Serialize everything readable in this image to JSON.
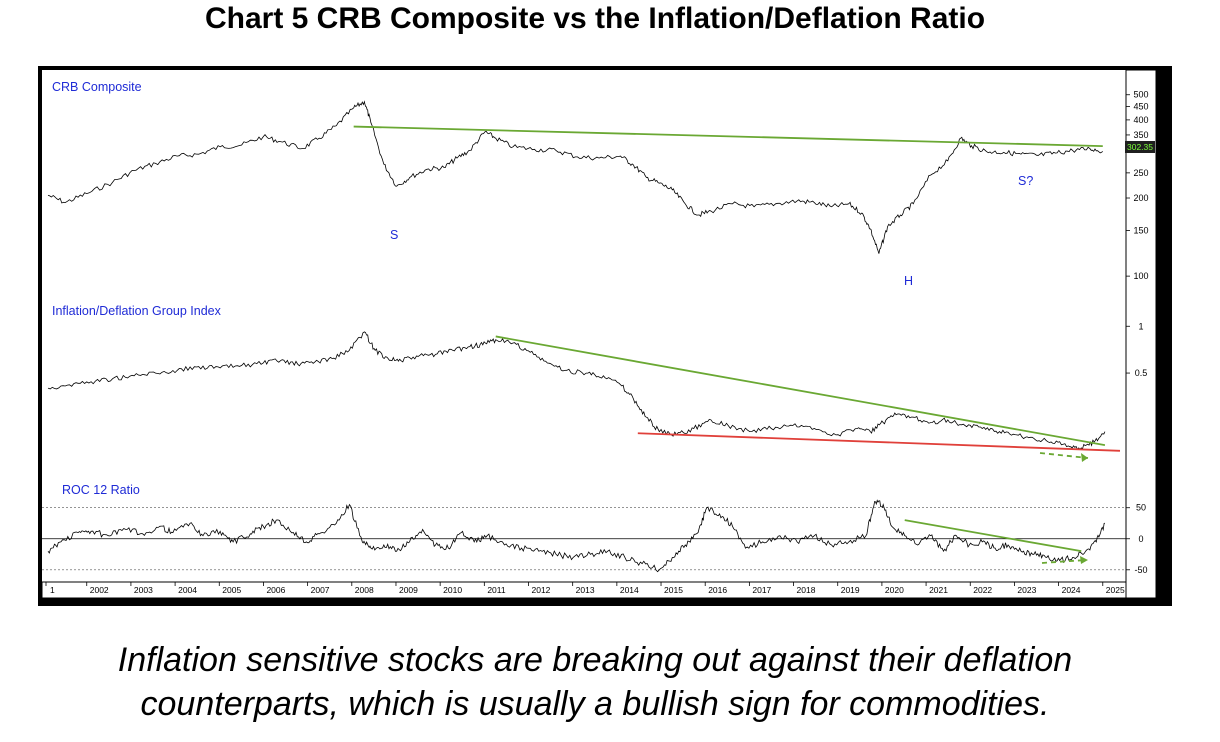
{
  "title": "Chart 5 CRB Composite vs the Inflation/Deflation Ratio",
  "caption_lines": [
    "Inflation sensitive stocks are breaking out against their deflation",
    "counterparts, which is usually a bullish sign for commodities."
  ],
  "chart_data": [
    {
      "type": "line",
      "panel": "top",
      "label": "CRB Composite",
      "scale": "log",
      "ylim": [
        90,
        550
      ],
      "yticks": [
        500,
        450,
        400,
        350,
        250,
        200,
        150,
        100
      ],
      "last_value_label": "302.35",
      "x_labels": [
        "1",
        "2002",
        "2003",
        "2004",
        "2005",
        "2006",
        "2007",
        "2008",
        "2009",
        "2010",
        "2011",
        "2012",
        "2013",
        "2014",
        "2015",
        "2016",
        "2017",
        "2018",
        "2019",
        "2020",
        "2021",
        "2022",
        "2023",
        "2024",
        "2025"
      ],
      "series": [
        {
          "x": [
            2001.0,
            2001.4,
            2001.9,
            2002.5,
            2003.0,
            2003.5,
            2004.0,
            2004.5,
            2005.0,
            2005.5,
            2006.0,
            2006.4,
            2006.9,
            2007.3,
            2007.7,
            2008.1,
            2008.35,
            2008.5,
            2008.8,
            2009.1,
            2009.4,
            2009.8,
            2010.2,
            2010.5,
            2010.8,
            2011.15,
            2011.4,
            2011.8,
            2012.3,
            2012.8,
            2013.3,
            2013.8,
            2014.3,
            2014.6,
            2014.9,
            2015.2,
            2015.5,
            2015.8,
            2016.1,
            2016.4,
            2016.9,
            2017.4,
            2017.9,
            2018.4,
            2018.8,
            2019.2,
            2019.6,
            2019.9,
            2020.1,
            2020.3,
            2020.5,
            2020.8,
            2021.1,
            2021.5,
            2021.9,
            2022.2,
            2022.45,
            2022.8,
            2023.2,
            2023.6,
            2024.0,
            2024.4,
            2024.8,
            2025.2,
            2025.5
          ],
          "values": [
            205,
            192,
            208,
            230,
            255,
            272,
            290,
            295,
            315,
            320,
            345,
            330,
            310,
            340,
            380,
            445,
            470,
            390,
            270,
            222,
            240,
            258,
            262,
            285,
            305,
            360,
            340,
            315,
            308,
            305,
            288,
            285,
            290,
            268,
            240,
            228,
            215,
            190,
            172,
            178,
            190,
            185,
            190,
            195,
            192,
            185,
            190,
            175,
            152,
            122,
            155,
            172,
            190,
            245,
            278,
            340,
            318,
            302,
            300,
            295,
            292,
            298,
            305,
            310,
            302.35
          ]
        }
      ],
      "trendlines": [
        {
          "color": "#6aa833",
          "x": [
            2008.1,
            2025.5
          ],
          "y": [
            377,
            317
          ]
        }
      ],
      "annotations": [
        "S",
        "H",
        "S?"
      ]
    },
    {
      "type": "line",
      "panel": "middle",
      "label": "Inflation/Deflation Group Index",
      "scale": "log",
      "ylim": [
        0.13,
        1.35
      ],
      "yticks": [
        1.0,
        0.5
      ],
      "series": [
        {
          "x": [
            2001.0,
            2001.5,
            2002.0,
            2002.5,
            2003.0,
            2003.5,
            2004.0,
            2004.5,
            2005.0,
            2005.5,
            2006.0,
            2006.4,
            2006.8,
            2007.2,
            2007.6,
            2008.0,
            2008.35,
            2008.6,
            2008.9,
            2009.2,
            2009.6,
            2010.0,
            2010.4,
            2010.8,
            2011.1,
            2011.4,
            2011.8,
            2012.2,
            2012.6,
            2013.0,
            2013.5,
            2013.9,
            2014.3,
            2014.6,
            2014.9,
            2015.2,
            2015.6,
            2016.0,
            2016.4,
            2016.8,
            2017.3,
            2017.8,
            2018.3,
            2018.8,
            2019.3,
            2019.8,
            2020.1,
            2020.4,
            2020.7,
            2021.1,
            2021.5,
            2021.9,
            2022.3,
            2022.7,
            2023.1,
            2023.5,
            2023.9,
            2024.3,
            2024.7,
            2025.0,
            2025.3,
            2025.55
          ],
          "values": [
            0.4,
            0.42,
            0.44,
            0.46,
            0.48,
            0.5,
            0.52,
            0.55,
            0.54,
            0.56,
            0.58,
            0.6,
            0.57,
            0.59,
            0.62,
            0.7,
            0.92,
            0.7,
            0.62,
            0.6,
            0.64,
            0.66,
            0.7,
            0.74,
            0.76,
            0.82,
            0.78,
            0.68,
            0.58,
            0.52,
            0.5,
            0.48,
            0.42,
            0.34,
            0.26,
            0.21,
            0.2,
            0.22,
            0.25,
            0.23,
            0.21,
            0.22,
            0.23,
            0.22,
            0.2,
            0.22,
            0.21,
            0.24,
            0.27,
            0.26,
            0.24,
            0.25,
            0.23,
            0.22,
            0.21,
            0.2,
            0.19,
            0.18,
            0.17,
            0.165,
            0.18,
            0.21
          ]
        }
      ],
      "trendlines": [
        {
          "color": "#6aa833",
          "x": [
            2011.4,
            2025.55
          ],
          "y": [
            0.86,
            0.172
          ]
        },
        {
          "color": "#e0403a",
          "x": [
            2014.7,
            2025.9
          ],
          "y": [
            0.205,
            0.158
          ]
        }
      ]
    },
    {
      "type": "line",
      "panel": "bottom",
      "label": "ROC 12 Ratio",
      "ylim": [
        -60,
        85
      ],
      "yticks": [
        50,
        0,
        -50
      ],
      "reference_lines": [
        50,
        0,
        -50
      ],
      "series": [
        {
          "x": [
            2001.0,
            2001.3,
            2001.7,
            2002.0,
            2002.4,
            2002.8,
            2003.2,
            2003.6,
            2003.9,
            2004.3,
            2004.6,
            2005.0,
            2005.3,
            2005.7,
            2006.0,
            2006.3,
            2006.7,
            2007.0,
            2007.3,
            2007.7,
            2008.0,
            2008.3,
            2008.5,
            2008.8,
            2009.1,
            2009.4,
            2009.7,
            2010.0,
            2010.3,
            2010.6,
            2010.9,
            2011.2,
            2011.6,
            2012.0,
            2012.4,
            2012.8,
            2013.2,
            2013.6,
            2014.0,
            2014.4,
            2014.8,
            2015.2,
            2015.5,
            2015.8,
            2016.1,
            2016.3,
            2016.6,
            2016.9,
            2017.2,
            2017.6,
            2018.0,
            2018.4,
            2018.8,
            2019.2,
            2019.6,
            2020.0,
            2020.2,
            2020.4,
            2020.6,
            2020.9,
            2021.2,
            2021.5,
            2021.8,
            2022.1,
            2022.4,
            2022.7,
            2023.0,
            2023.3,
            2023.6,
            2023.9,
            2024.2,
            2024.5,
            2024.8,
            2025.1,
            2025.35,
            2025.55
          ],
          "values": [
            -20,
            -5,
            10,
            12,
            5,
            15,
            8,
            20,
            10,
            25,
            5,
            12,
            -5,
            8,
            20,
            30,
            10,
            -5,
            8,
            25,
            55,
            -5,
            -15,
            -10,
            -20,
            -5,
            15,
            -10,
            -15,
            10,
            -5,
            5,
            -10,
            -15,
            -20,
            -25,
            -30,
            -25,
            -20,
            -30,
            -40,
            -50,
            -30,
            -10,
            10,
            50,
            40,
            20,
            -15,
            -5,
            5,
            -5,
            5,
            -10,
            -5,
            5,
            60,
            55,
            20,
            5,
            -10,
            5,
            -20,
            5,
            -10,
            -5,
            -15,
            -10,
            -20,
            -25,
            -30,
            -35,
            -30,
            -20,
            -5,
            25
          ]
        }
      ],
      "trendlines": [
        {
          "color": "#6aa833",
          "x": [
            2020.9,
            2025.0
          ],
          "y": [
            30,
            -20
          ]
        }
      ]
    }
  ]
}
